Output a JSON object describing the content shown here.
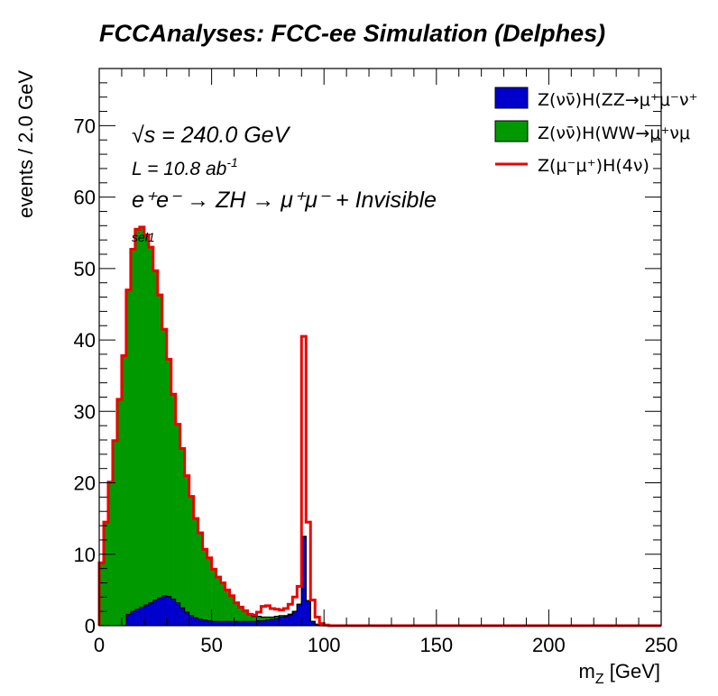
{
  "title": "FCCAnalyses: FCC-ee Simulation (Delphes)",
  "annotations": {
    "sqrt_s": "√s = 240.0 GeV",
    "lumi": "L = 10.8 ab",
    "lumi_exp": "-1",
    "process": "e⁺e⁻ → ZH → μ⁺μ⁻ + Invisible",
    "selection": "sel1"
  },
  "chart_data": {
    "type": "histogram",
    "xlabel": "m_Z [GeV]",
    "xlabel_main": "m",
    "xlabel_sub": "Z",
    "xlabel_unit": " [GeV]",
    "ylabel": "events / 2.0 GeV",
    "xlim": [
      0,
      250
    ],
    "ylim": [
      0,
      78
    ],
    "bin_width": 2.0,
    "x_ticks": [
      "0",
      "50",
      "100",
      "150",
      "200",
      "250"
    ],
    "y_ticks": [
      "0",
      "10",
      "20",
      "30",
      "40",
      "50",
      "60",
      "70"
    ],
    "bin_edges_start": 0,
    "series": [
      {
        "name": "Z(νν̄)H(ZZ→μ⁺μ⁻ν⁺",
        "role": "stacked-fill",
        "color": "#0000cc",
        "values": [
          0,
          0,
          0,
          0,
          0,
          0,
          1.6,
          2.0,
          2.3,
          2.6,
          2.9,
          3.2,
          3.6,
          3.9,
          4.2,
          4.1,
          3.7,
          3.2,
          2.5,
          1.9,
          1.4,
          1.1,
          0.9,
          0.8,
          0.7,
          0.6,
          0.6,
          0.6,
          0.6,
          0.6,
          0.6,
          0.6,
          0.6,
          0.6,
          0.6,
          0.7,
          0.7,
          0.8,
          0.9,
          1.0,
          1.2,
          1.3,
          1.5,
          2.0,
          3.0,
          12.5,
          3.5,
          0.6,
          0.2
        ]
      },
      {
        "name": "Z(νν̄)H(WW→μ⁺νμ",
        "role": "stacked-fill",
        "color": "#009900",
        "values": [
          8.8,
          14.5,
          20.1,
          25.9,
          31.7,
          37.8,
          45.4,
          50.7,
          53.2,
          53.2,
          51.8,
          49.8,
          46.1,
          42.4,
          37.3,
          33.2,
          28.7,
          25.0,
          22.3,
          19.1,
          16.7,
          13.9,
          12.1,
          9.9,
          8.8,
          7.3,
          6.2,
          5.4,
          4.4,
          3.6,
          2.6,
          2.0,
          1.5,
          1.0,
          0.7,
          0.6,
          0.5,
          0.4,
          0.3,
          0.3,
          0.2,
          0.1,
          0.1,
          0,
          0,
          0,
          0,
          0,
          0
        ]
      },
      {
        "name": "Z(μ⁻μ⁺)H(4ν)",
        "role": "stacked-line",
        "color": "#ee0000",
        "values": [
          0,
          0,
          0,
          0,
          0,
          0,
          0,
          0,
          0,
          0,
          0,
          0,
          0,
          0,
          0,
          0,
          0,
          0,
          0,
          0,
          0,
          0,
          0,
          0,
          0,
          0,
          0,
          0,
          0,
          0,
          0,
          0,
          0,
          0,
          0.2,
          0.6,
          1.5,
          1.6,
          1.2,
          1.0,
          0.8,
          1.0,
          1.4,
          2.0,
          2.5,
          28.0,
          11.0,
          3.0,
          1.0,
          0.3,
          0.1
        ]
      }
    ],
    "legend_position": "top-right"
  },
  "colors": {
    "frame": "#000000",
    "background": "#ffffff",
    "outline": "#000000"
  }
}
